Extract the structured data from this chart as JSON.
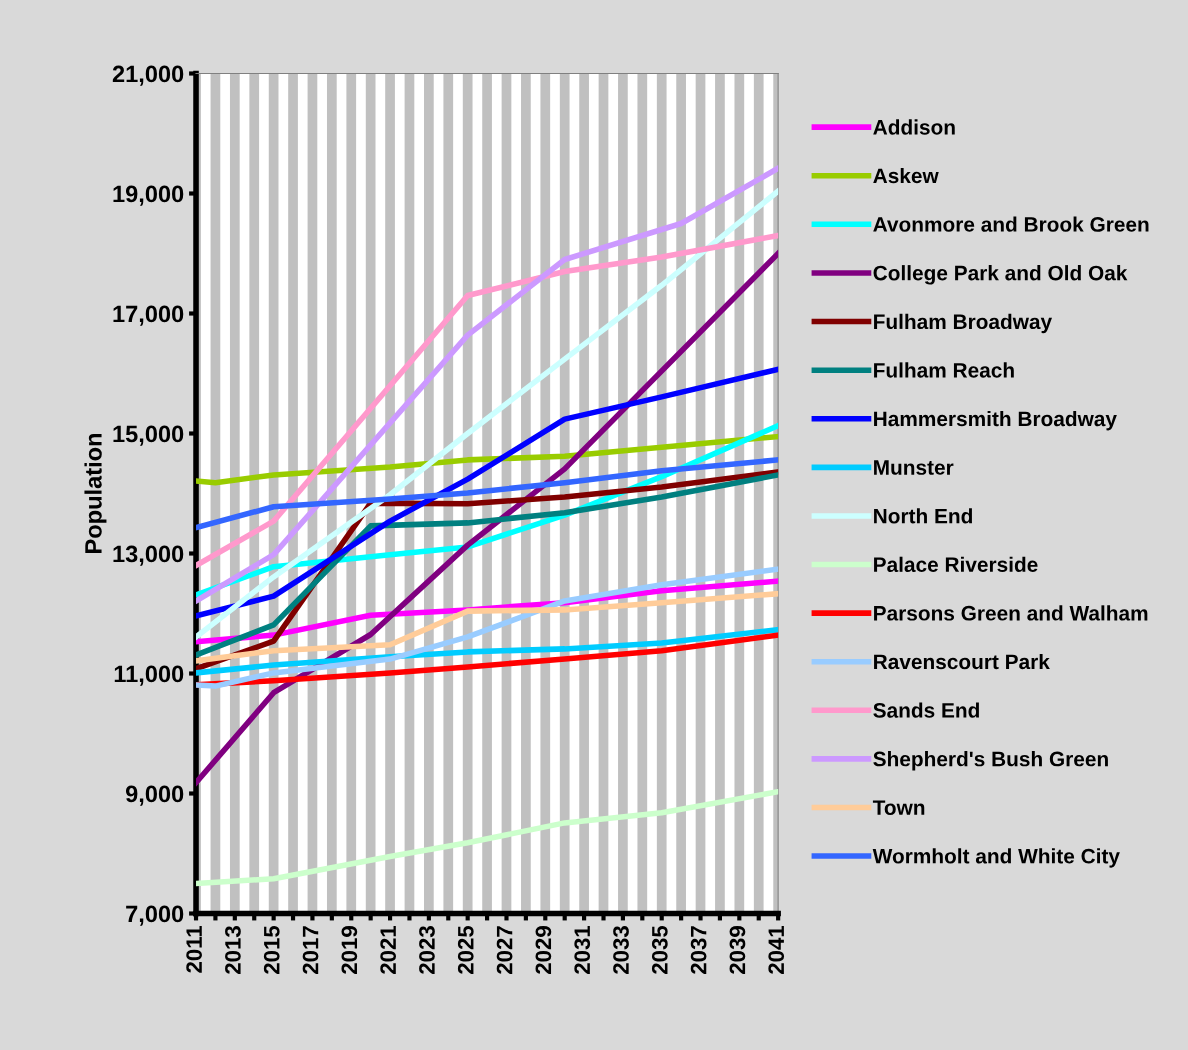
{
  "chart_data": {
    "type": "line",
    "ylabel": "Population",
    "xlim": [
      2011,
      2041
    ],
    "xticks": [
      2011,
      {
        "value": 2012,
        "label": null
      },
      2013,
      {
        "value": 2014,
        "label": null
      },
      2015,
      {
        "value": 2016,
        "label": null
      },
      2017,
      {
        "value": 2018,
        "label": null
      },
      2019,
      {
        "value": 2020,
        "label": null
      },
      2021,
      {
        "value": 2022,
        "label": null
      },
      2023,
      {
        "value": 2024,
        "label": null
      },
      2025,
      {
        "value": 2026,
        "label": null
      },
      2027,
      {
        "value": 2028,
        "label": null
      },
      2029,
      {
        "value": 2030,
        "label": null
      },
      2031,
      {
        "value": 2032,
        "label": null
      },
      2033,
      {
        "value": 2034,
        "label": null
      },
      2035,
      {
        "value": 2036,
        "label": null
      },
      2037,
      {
        "value": 2038,
        "label": null
      },
      2039,
      {
        "value": 2040,
        "label": null
      },
      2041
    ],
    "ylim": [
      7000,
      21000
    ],
    "yticks": [
      {
        "value": 7000,
        "label": "7,000"
      },
      {
        "value": 9000,
        "label": "9,000"
      },
      {
        "value": 11000,
        "label": "11,000"
      },
      {
        "value": 13000,
        "label": "13,000"
      },
      {
        "value": 15000,
        "label": "15,000"
      },
      {
        "value": 17000,
        "label": "17,000"
      },
      {
        "value": 19000,
        "label": "19,000"
      },
      {
        "value": 21000,
        "label": "21,000"
      }
    ],
    "grid": "x",
    "legend": "right",
    "marker": "none",
    "line_style": "solid",
    "series": [
      {
        "name": "Addison",
        "color": "#ff00ff",
        "x": [
          2011,
          2015,
          2020,
          2025,
          2030,
          2035,
          2041
        ],
        "values": [
          11530,
          11640,
          11970,
          12060,
          12180,
          12380,
          12540
        ]
      },
      {
        "name": "Askew",
        "color": "#99cc00",
        "x": [
          2011,
          2012,
          2015,
          2021,
          2025,
          2030,
          2035,
          2041
        ],
        "values": [
          14210,
          14180,
          14310,
          14440,
          14560,
          14620,
          14770,
          14950
        ]
      },
      {
        "name": "Avonmore and Brook Green",
        "color": "#00ffff",
        "x": [
          2011,
          2015,
          2021,
          2025,
          2030,
          2035,
          2041
        ],
        "values": [
          12310,
          12780,
          12980,
          13110,
          13640,
          14280,
          15130
        ]
      },
      {
        "name": "College Park and Old Oak",
        "color": "#800080",
        "x": [
          2011,
          2015,
          2020,
          2025,
          2030,
          2041
        ],
        "values": [
          9180,
          10680,
          11650,
          13140,
          14410,
          18000
        ]
      },
      {
        "name": "Fulham Broadway",
        "color": "#800000",
        "x": [
          2011,
          2015,
          2020,
          2025,
          2030,
          2035,
          2041
        ],
        "values": [
          11080,
          11540,
          13840,
          13830,
          13940,
          14110,
          14360
        ]
      },
      {
        "name": "Fulham Reach",
        "color": "#008080",
        "x": [
          2011,
          2015,
          2020,
          2025,
          2030,
          2035,
          2041
        ],
        "values": [
          11310,
          11810,
          13460,
          13510,
          13680,
          13940,
          14310
        ]
      },
      {
        "name": "Hammersmith Broadway",
        "color": "#0000ff",
        "x": [
          2011,
          2015,
          2021,
          2025,
          2030,
          2035,
          2041
        ],
        "values": [
          11960,
          12290,
          13540,
          14240,
          15240,
          15610,
          16070
        ]
      },
      {
        "name": "Munster",
        "color": "#00ccff",
        "x": [
          2011,
          2015,
          2021,
          2025,
          2030,
          2035,
          2041
        ],
        "values": [
          11010,
          11140,
          11280,
          11360,
          11410,
          11510,
          11730
        ]
      },
      {
        "name": "North End",
        "color": "#ccffff",
        "x": [
          2011,
          2015,
          2021,
          2025,
          2030,
          2035,
          2041
        ],
        "values": [
          11610,
          12610,
          13980,
          15000,
          16240,
          17470,
          19040
        ]
      },
      {
        "name": "Palace Riverside",
        "color": "#ccffcc",
        "x": [
          2011,
          2015,
          2021,
          2025,
          2030,
          2035,
          2041
        ],
        "values": [
          7500,
          7580,
          7950,
          8180,
          8510,
          8680,
          9030
        ]
      },
      {
        "name": "Parsons Green and Walham",
        "color": "#ff0000",
        "x": [
          2011,
          2015,
          2021,
          2025,
          2030,
          2035,
          2041
        ],
        "values": [
          10810,
          10880,
          11010,
          11110,
          11240,
          11380,
          11640
        ]
      },
      {
        "name": "Ravenscourt Park",
        "color": "#99ccff",
        "x": [
          2011,
          2012,
          2015,
          2021,
          2025,
          2030,
          2035,
          2041
        ],
        "values": [
          10810,
          10790,
          11010,
          11240,
          11610,
          12210,
          12480,
          12740
        ]
      },
      {
        "name": "Sands End",
        "color": "#ff99cc",
        "x": [
          2011,
          2015,
          2025,
          2030,
          2035,
          2041
        ],
        "values": [
          12800,
          13540,
          17300,
          17700,
          17940,
          18300
        ]
      },
      {
        "name": "Shepherd's Bush Green",
        "color": "#cc99ff",
        "x": [
          2011,
          2015,
          2025,
          2030,
          2036,
          2041
        ],
        "values": [
          12210,
          12980,
          16640,
          17900,
          18500,
          19420
        ]
      },
      {
        "name": "Town",
        "color": "#ffcc99",
        "x": [
          2011,
          2015,
          2021,
          2025,
          2030,
          2035,
          2041
        ],
        "values": [
          11210,
          11380,
          11480,
          12040,
          12060,
          12180,
          12330
        ]
      },
      {
        "name": "Wormholt and White City",
        "color": "#3366ff",
        "x": [
          2011,
          2015,
          2021,
          2025,
          2030,
          2035,
          2041
        ],
        "values": [
          13430,
          13780,
          13910,
          14010,
          14180,
          14380,
          14560
        ]
      }
    ]
  }
}
